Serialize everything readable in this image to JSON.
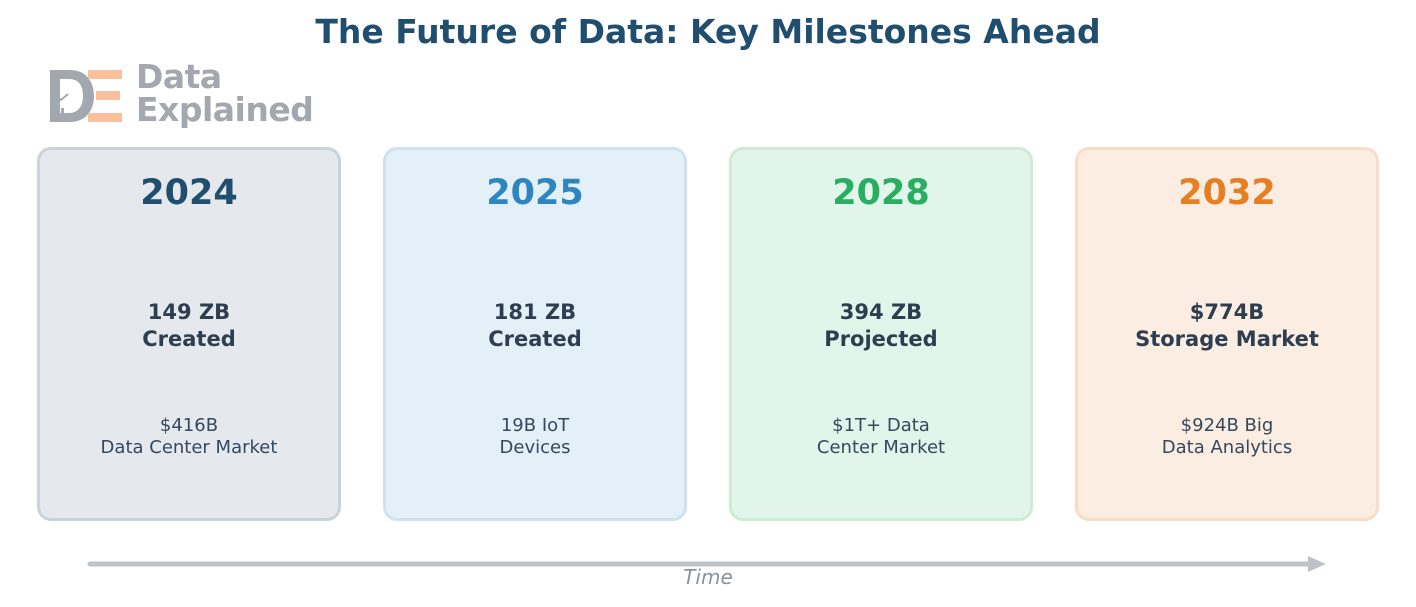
{
  "title": "The Future of Data: Key Milestones Ahead",
  "logo": {
    "line1": "Data",
    "line2": "Explained",
    "letters": [
      "D",
      "E"
    ],
    "colors": {
      "d": "#a3a8ae",
      "e": "#fbbf9c",
      "text": "#a3a8ae"
    }
  },
  "milestones": [
    {
      "year": "2024",
      "headline": [
        "149 ZB",
        "Created"
      ],
      "detail": [
        "$416B",
        "Data Center Market"
      ],
      "accent": "#1f4e6e",
      "fill": "#e5e9ed",
      "border": "#cbd3da"
    },
    {
      "year": "2025",
      "headline": [
        "181 ZB",
        "Created"
      ],
      "detail": [
        "19B IoT",
        "Devices"
      ],
      "accent": "#2e86c1",
      "fill": "#e4f0f8",
      "border": "#cfe2f1"
    },
    {
      "year": "2028",
      "headline": [
        "394 ZB",
        "Projected"
      ],
      "detail": [
        "$1T+ Data",
        "Center Market"
      ],
      "accent": "#27ae60",
      "fill": "#e2f5ea",
      "border": "#cdebd8"
    },
    {
      "year": "2032",
      "headline": [
        "$774B",
        "Storage Market"
      ],
      "detail": [
        "$924B Big",
        "Data Analytics"
      ],
      "accent": "#e67e22",
      "fill": "#fcede2",
      "border": "#f8dcc6"
    }
  ],
  "timeline": {
    "label": "Time",
    "color": "#bdc3c7"
  }
}
